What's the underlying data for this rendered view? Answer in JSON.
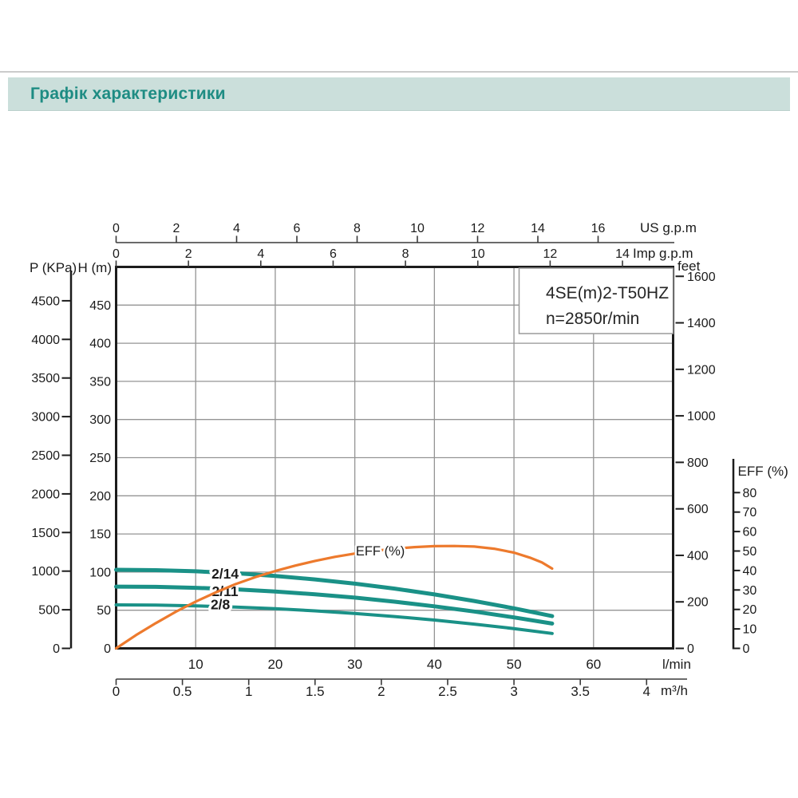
{
  "header": {
    "title": "Графік характеристики"
  },
  "chart_data": {
    "type": "line",
    "title": "4SE(m)2-T50HZ",
    "subtitle": "n=2850r/min",
    "model_label": {
      "line1": "4SE(m)2-T50HZ",
      "line2": "n=2850r/min"
    },
    "grid": "on",
    "frame_ranges": {
      "flow_lmin": [
        0,
        70
      ],
      "head_m": [
        0,
        500
      ]
    },
    "x_axes": [
      {
        "id": "usgpm",
        "label": "US g.p.m",
        "max": 18.49,
        "ticks": [
          0,
          2,
          4,
          6,
          8,
          10,
          12,
          14,
          16
        ]
      },
      {
        "id": "impgpm",
        "label": "Imp g.p.m",
        "max": 15.4,
        "ticks": [
          0,
          2,
          4,
          6,
          8,
          10,
          12,
          14
        ]
      },
      {
        "id": "lmin",
        "label": "l/min",
        "max": 70,
        "ticks": [
          10,
          20,
          30,
          40,
          50,
          60
        ]
      },
      {
        "id": "m3h",
        "label": "m³/h",
        "max": 4.2,
        "ticks": [
          0,
          0.5,
          1,
          1.5,
          2,
          2.5,
          3,
          3.5,
          4
        ]
      }
    ],
    "y_axes": [
      {
        "id": "h",
        "label": "H (m)",
        "max": 500,
        "ticks": [
          0,
          50,
          100,
          150,
          200,
          250,
          300,
          350,
          400,
          450
        ]
      },
      {
        "id": "p",
        "label": "P (KPa)",
        "max": 4938,
        "ticks": [
          0,
          500,
          1000,
          1500,
          2000,
          2500,
          3000,
          3500,
          4000,
          4500
        ]
      },
      {
        "id": "feet",
        "label": "feet",
        "max": 1640.4,
        "ticks": [
          0,
          200,
          400,
          600,
          800,
          1000,
          1200,
          1400,
          1600
        ]
      },
      {
        "id": "eff",
        "label": "EFF (%)",
        "max": 195.9,
        "ticks": [
          0,
          10,
          20,
          30,
          40,
          50,
          60,
          70,
          80
        ]
      }
    ],
    "series": [
      {
        "name": "2/14",
        "axis": "h",
        "color": "#1A9187",
        "width": 5,
        "label_at": [
          13.7,
          98
        ],
        "points": [
          [
            0,
            103
          ],
          [
            5,
            102.5
          ],
          [
            10,
            101
          ],
          [
            15,
            98.5
          ],
          [
            20,
            94.9
          ],
          [
            25,
            90.4
          ],
          [
            30,
            84.8
          ],
          [
            35,
            78.3
          ],
          [
            40,
            70.7
          ],
          [
            45,
            62.1
          ],
          [
            50,
            52.5
          ],
          [
            54.8,
            42.3
          ]
        ]
      },
      {
        "name": "2/11",
        "axis": "h",
        "color": "#1A9187",
        "width": 5,
        "label_at": [
          13.7,
          75
        ],
        "points": [
          [
            0,
            81
          ],
          [
            5,
            80.6
          ],
          [
            10,
            79.4
          ],
          [
            15,
            77.4
          ],
          [
            20,
            74.5
          ],
          [
            25,
            70.9
          ],
          [
            30,
            66.5
          ],
          [
            35,
            61.2
          ],
          [
            40,
            55.1
          ],
          [
            45,
            48.3
          ],
          [
            50,
            40.6
          ],
          [
            54.8,
            32.5
          ]
        ]
      },
      {
        "name": "2/8",
        "axis": "h",
        "color": "#1A9187",
        "width": 4,
        "label_at": [
          13.1,
          57.5
        ],
        "points": [
          [
            0,
            57
          ],
          [
            5,
            56.7
          ],
          [
            10,
            55.8
          ],
          [
            15,
            54.2
          ],
          [
            20,
            52
          ],
          [
            25,
            49.2
          ],
          [
            30,
            45.8
          ],
          [
            35,
            41.7
          ],
          [
            40,
            37.1
          ],
          [
            45,
            31.8
          ],
          [
            50,
            25.9
          ],
          [
            54.8,
            19.6
          ]
        ]
      },
      {
        "name": "EFF (%)",
        "axis": "eff",
        "color": "#ED7A2D",
        "width": 3.2,
        "label_at": [
          33.2,
          50.2
        ],
        "points": [
          [
            0,
            0
          ],
          [
            2.5,
            6.8
          ],
          [
            5,
            13
          ],
          [
            7.5,
            18.8
          ],
          [
            10,
            24
          ],
          [
            12.5,
            28.7
          ],
          [
            15,
            33
          ],
          [
            17.5,
            36.6
          ],
          [
            20,
            39.7
          ],
          [
            22.5,
            42.5
          ],
          [
            25,
            44.9
          ],
          [
            27.5,
            47
          ],
          [
            30,
            48.7
          ],
          [
            32.5,
            50.1
          ],
          [
            35,
            51.2
          ],
          [
            37.5,
            52
          ],
          [
            40,
            52.5
          ],
          [
            42.5,
            52.6
          ],
          [
            45,
            52.3
          ],
          [
            47.5,
            51.2
          ],
          [
            50,
            49.2
          ],
          [
            52,
            46.6
          ],
          [
            53.5,
            44.2
          ],
          [
            54.8,
            41
          ]
        ]
      }
    ]
  }
}
